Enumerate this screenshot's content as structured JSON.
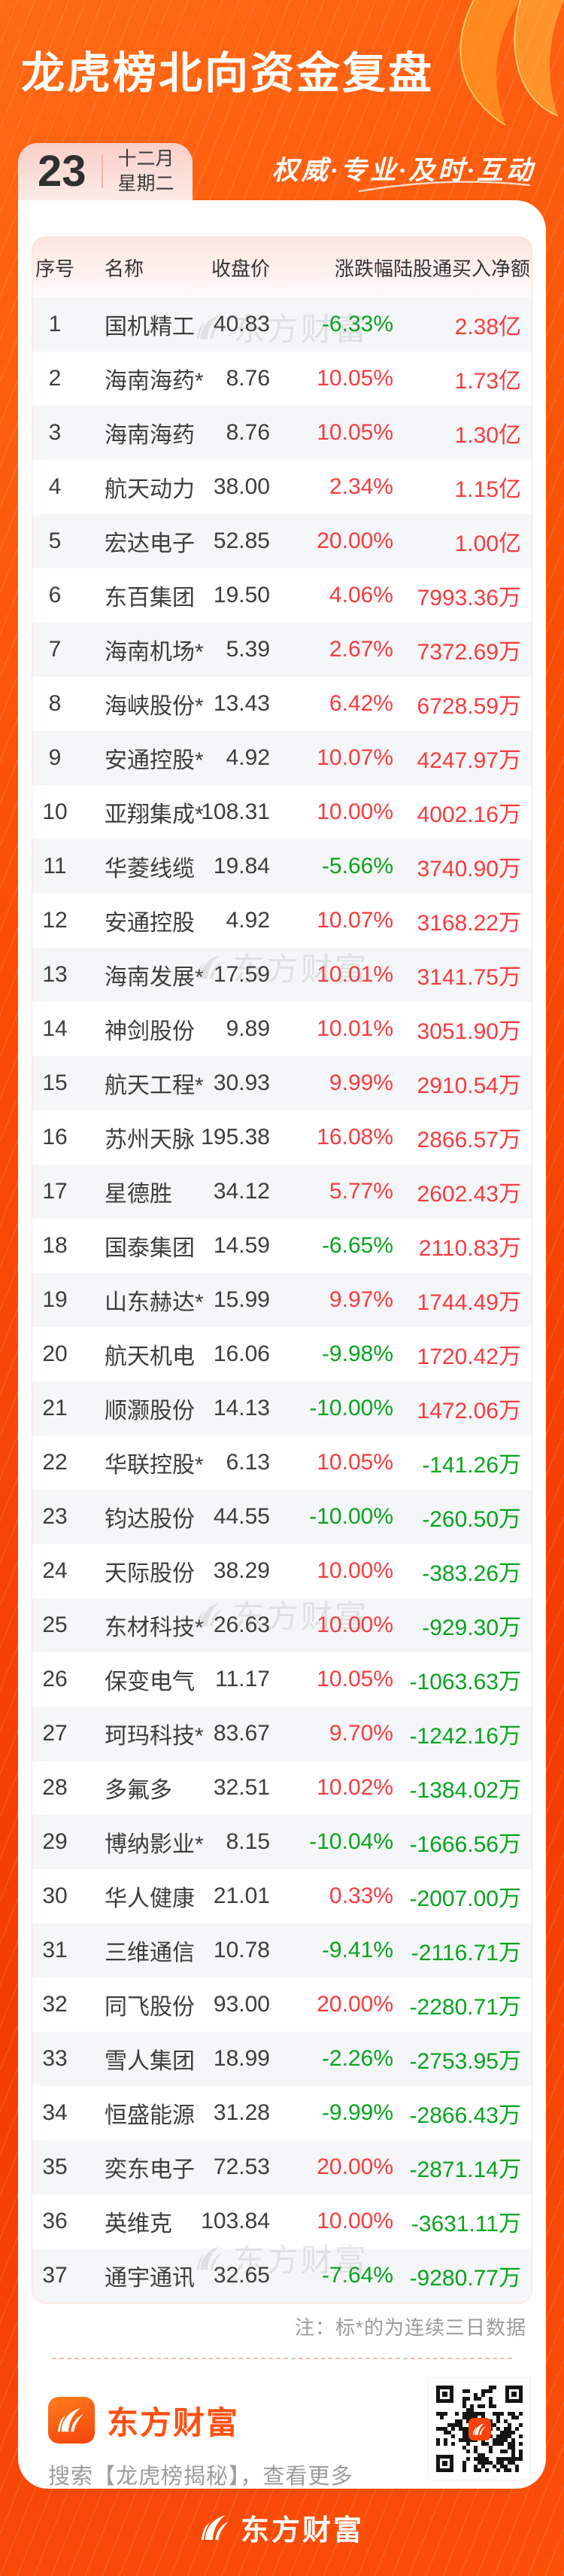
{
  "poster": {
    "title": "龙虎榜北向资金复盘",
    "slogan": "权威·专业·及时·互动",
    "date": {
      "day": "23",
      "month": "十二月",
      "weekday": "星期二"
    },
    "note": "注：标*的为连续三日数据",
    "brand": {
      "name": "东方财富",
      "search_hint": "搜索【龙虎榜揭秘】，查看更多"
    },
    "watermark": "东方财富",
    "colors": {
      "background_orange": "#f94604",
      "up_red": "#fa3b40",
      "down_green": "#07a41f",
      "brand_orange": "#ff5012"
    }
  },
  "chart_data": {
    "type": "table",
    "title": "龙虎榜北向资金复盘",
    "date_label": "十二月23日 星期二",
    "columns": [
      "序号",
      "名称",
      "收盘价",
      "涨跌幅",
      "陆股通买入净额"
    ],
    "rows": [
      {
        "seq": "1",
        "name": "国机精工",
        "close": "40.83",
        "change": "-6.33%",
        "net": "2.38亿"
      },
      {
        "seq": "2",
        "name": "海南海药*",
        "close": "8.76",
        "change": "10.05%",
        "net": "1.73亿"
      },
      {
        "seq": "3",
        "name": "海南海药",
        "close": "8.76",
        "change": "10.05%",
        "net": "1.30亿"
      },
      {
        "seq": "4",
        "name": "航天动力",
        "close": "38.00",
        "change": "2.34%",
        "net": "1.15亿"
      },
      {
        "seq": "5",
        "name": "宏达电子",
        "close": "52.85",
        "change": "20.00%",
        "net": "1.00亿"
      },
      {
        "seq": "6",
        "name": "东百集团",
        "close": "19.50",
        "change": "4.06%",
        "net": "7993.36万"
      },
      {
        "seq": "7",
        "name": "海南机场*",
        "close": "5.39",
        "change": "2.67%",
        "net": "7372.69万"
      },
      {
        "seq": "8",
        "name": "海峡股份*",
        "close": "13.43",
        "change": "6.42%",
        "net": "6728.59万"
      },
      {
        "seq": "9",
        "name": "安通控股*",
        "close": "4.92",
        "change": "10.07%",
        "net": "4247.97万"
      },
      {
        "seq": "10",
        "name": "亚翔集成*",
        "close": "108.31",
        "change": "10.00%",
        "net": "4002.16万"
      },
      {
        "seq": "11",
        "name": "华菱线缆",
        "close": "19.84",
        "change": "-5.66%",
        "net": "3740.90万"
      },
      {
        "seq": "12",
        "name": "安通控股",
        "close": "4.92",
        "change": "10.07%",
        "net": "3168.22万"
      },
      {
        "seq": "13",
        "name": "海南发展*",
        "close": "17.59",
        "change": "10.01%",
        "net": "3141.75万"
      },
      {
        "seq": "14",
        "name": "神剑股份",
        "close": "9.89",
        "change": "10.01%",
        "net": "3051.90万"
      },
      {
        "seq": "15",
        "name": "航天工程*",
        "close": "30.93",
        "change": "9.99%",
        "net": "2910.54万"
      },
      {
        "seq": "16",
        "name": "苏州天脉",
        "close": "195.38",
        "change": "16.08%",
        "net": "2866.57万"
      },
      {
        "seq": "17",
        "name": "星德胜",
        "close": "34.12",
        "change": "5.77%",
        "net": "2602.43万"
      },
      {
        "seq": "18",
        "name": "国泰集团",
        "close": "14.59",
        "change": "-6.65%",
        "net": "2110.83万"
      },
      {
        "seq": "19",
        "name": "山东赫达*",
        "close": "15.99",
        "change": "9.97%",
        "net": "1744.49万"
      },
      {
        "seq": "20",
        "name": "航天机电",
        "close": "16.06",
        "change": "-9.98%",
        "net": "1720.42万"
      },
      {
        "seq": "21",
        "name": "顺灏股份",
        "close": "14.13",
        "change": "-10.00%",
        "net": "1472.06万"
      },
      {
        "seq": "22",
        "name": "华联控股*",
        "close": "6.13",
        "change": "10.05%",
        "net": "-141.26万"
      },
      {
        "seq": "23",
        "name": "钧达股份",
        "close": "44.55",
        "change": "-10.00%",
        "net": "-260.50万"
      },
      {
        "seq": "24",
        "name": "天际股份",
        "close": "38.29",
        "change": "10.00%",
        "net": "-383.26万"
      },
      {
        "seq": "25",
        "name": "东材科技*",
        "close": "26.63",
        "change": "10.00%",
        "net": "-929.30万"
      },
      {
        "seq": "26",
        "name": "保变电气",
        "close": "11.17",
        "change": "10.05%",
        "net": "-1063.63万"
      },
      {
        "seq": "27",
        "name": "珂玛科技*",
        "close": "83.67",
        "change": "9.70%",
        "net": "-1242.16万"
      },
      {
        "seq": "28",
        "name": "多氟多",
        "close": "32.51",
        "change": "10.02%",
        "net": "-1384.02万"
      },
      {
        "seq": "29",
        "name": "博纳影业*",
        "close": "8.15",
        "change": "-10.04%",
        "net": "-1666.56万"
      },
      {
        "seq": "30",
        "name": "华人健康",
        "close": "21.01",
        "change": "0.33%",
        "net": "-2007.00万"
      },
      {
        "seq": "31",
        "name": "三维通信",
        "close": "10.78",
        "change": "-9.41%",
        "net": "-2116.71万"
      },
      {
        "seq": "32",
        "name": "同飞股份",
        "close": "93.00",
        "change": "20.00%",
        "net": "-2280.71万"
      },
      {
        "seq": "33",
        "name": "雪人集团",
        "close": "18.99",
        "change": "-2.26%",
        "net": "-2753.95万"
      },
      {
        "seq": "34",
        "name": "恒盛能源",
        "close": "31.28",
        "change": "-9.99%",
        "net": "-2866.43万"
      },
      {
        "seq": "35",
        "name": "奕东电子",
        "close": "72.53",
        "change": "20.00%",
        "net": "-2871.14万"
      },
      {
        "seq": "36",
        "name": "英维克",
        "close": "103.84",
        "change": "10.00%",
        "net": "-3631.11万"
      },
      {
        "seq": "37",
        "name": "通宇通讯",
        "close": "32.65",
        "change": "-7.64%",
        "net": "-9280.77万"
      }
    ]
  }
}
